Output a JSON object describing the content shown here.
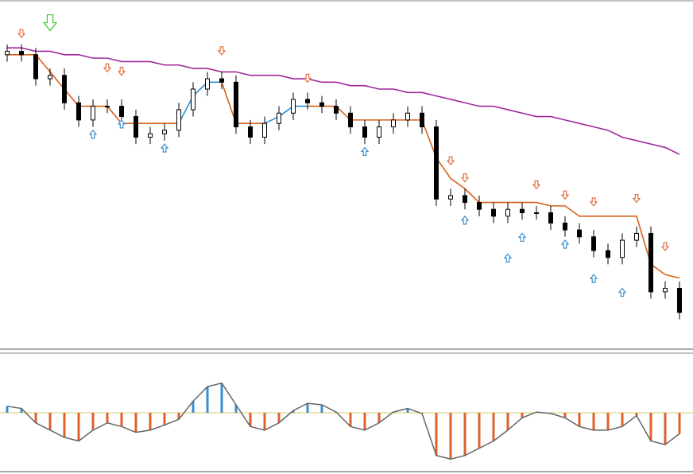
{
  "chart_data": [
    {
      "type": "candlestick",
      "ylim": [
        0,
        100
      ],
      "up_color": "#ffffff",
      "down_color": "#000000",
      "open": [
        85,
        86,
        85,
        78,
        79,
        71,
        66,
        70,
        70,
        67,
        61,
        62,
        63,
        69,
        75,
        78,
        77,
        64,
        61,
        65,
        68,
        72,
        71,
        70,
        68,
        64,
        61,
        64,
        66,
        68,
        64,
        43,
        44,
        42,
        40,
        38,
        40,
        39,
        39,
        36,
        34,
        32,
        28,
        26,
        31,
        33,
        16,
        17
      ],
      "high": [
        88,
        88,
        87,
        81,
        81,
        73,
        72,
        72,
        72,
        69,
        64,
        65,
        71,
        77,
        80,
        80,
        79,
        66,
        67,
        70,
        74,
        74,
        73,
        72,
        70,
        66,
        66,
        68,
        70,
        70,
        66,
        46,
        46,
        44,
        42,
        42,
        42,
        41,
        41,
        38,
        36,
        34,
        30,
        33,
        35,
        35,
        19,
        19
      ],
      "low": [
        83,
        83,
        76,
        76,
        69,
        64,
        64,
        68,
        65,
        59,
        59,
        60,
        61,
        67,
        73,
        75,
        62,
        59,
        59,
        63,
        66,
        69,
        68,
        66,
        62,
        59,
        59,
        62,
        64,
        62,
        41,
        41,
        40,
        38,
        36,
        36,
        37,
        37,
        34,
        32,
        30,
        26,
        24,
        24,
        29,
        14,
        14,
        8
      ],
      "close": [
        86,
        85,
        78,
        79,
        71,
        66,
        70,
        70,
        67,
        61,
        62,
        63,
        69,
        75,
        78,
        77,
        64,
        61,
        65,
        68,
        72,
        71,
        70,
        68,
        64,
        61,
        64,
        66,
        68,
        64,
        43,
        44,
        42,
        40,
        38,
        40,
        39,
        39,
        36,
        34,
        32,
        28,
        26,
        31,
        33,
        16,
        17,
        10
      ],
      "series": [
        {
          "color": "#a0289a",
          "values": [
            87,
            87,
            86,
            86,
            85,
            85,
            84,
            84,
            83,
            83,
            83,
            82,
            82,
            81,
            81,
            80,
            80,
            79,
            79,
            79,
            78,
            78,
            77,
            77,
            76,
            76,
            75,
            75,
            74,
            74,
            73,
            72,
            71,
            70,
            70,
            69,
            68,
            67,
            67,
            66,
            65,
            64,
            63,
            61,
            60,
            59,
            58,
            56
          ]
        },
        {
          "color": "#d9601a",
          "values": [
            85,
            85,
            85,
            80,
            75,
            70,
            70,
            70,
            65,
            65,
            65,
            65,
            65,
            null,
            null,
            77,
            65,
            65,
            65,
            null,
            null,
            70,
            70,
            70,
            66,
            66,
            66,
            66,
            66,
            66,
            55,
            49,
            46,
            42,
            42,
            42,
            42,
            42,
            41,
            41,
            38,
            38,
            38,
            38,
            38,
            24,
            21,
            20
          ]
        },
        {
          "color": "#2b8fd0",
          "values": [
            null,
            null,
            null,
            null,
            null,
            null,
            null,
            null,
            null,
            null,
            null,
            null,
            65,
            73,
            77,
            77,
            null,
            null,
            65,
            67,
            70,
            70,
            null,
            null,
            null,
            null,
            null,
            null,
            null,
            null,
            null,
            null,
            null,
            null,
            null,
            null,
            null,
            null,
            null,
            null,
            null,
            null,
            null,
            null,
            null,
            null,
            null,
            null
          ]
        }
      ],
      "markers": [
        {
          "direction": "down",
          "color": "#e07040",
          "values": [
            null,
            90,
            null,
            null,
            null,
            null,
            null,
            80,
            79,
            null,
            null,
            null,
            null,
            null,
            null,
            85,
            null,
            null,
            null,
            null,
            null,
            77,
            null,
            null,
            null,
            null,
            null,
            null,
            null,
            null,
            null,
            53,
            48,
            null,
            null,
            null,
            null,
            46,
            null,
            43,
            null,
            41,
            null,
            null,
            42,
            null,
            28,
            null
          ]
        },
        {
          "direction": "up",
          "color": "#3a8fd0",
          "values": [
            null,
            null,
            null,
            null,
            null,
            null,
            63,
            null,
            66,
            null,
            null,
            59,
            null,
            null,
            null,
            null,
            null,
            null,
            null,
            null,
            null,
            null,
            null,
            null,
            null,
            58,
            null,
            null,
            null,
            null,
            null,
            null,
            38,
            null,
            null,
            27,
            33,
            null,
            null,
            31,
            null,
            21,
            null,
            17,
            null,
            null,
            null,
            null
          ]
        },
        {
          "direction": "down",
          "color": "#36c72e",
          "size": "large",
          "values": [
            null,
            null,
            null,
            92,
            null,
            null,
            null,
            null,
            null,
            null,
            null,
            null,
            null,
            null,
            null,
            null,
            null,
            null,
            null,
            null,
            null,
            null,
            null,
            null,
            null,
            null,
            null,
            null,
            null,
            null,
            null,
            null,
            null,
            null,
            null,
            null,
            null,
            null,
            null,
            null,
            null,
            null,
            null,
            null,
            null,
            null,
            null,
            null
          ]
        }
      ]
    },
    {
      "type": "bar",
      "ylim": [
        -78,
        78
      ],
      "pos_color": "#3a8fd0",
      "neg_color": "#e0602a",
      "outline_color": "#666666",
      "values": [
        9,
        6,
        -14,
        -24,
        -34,
        -39,
        -24,
        -14,
        -19,
        -27,
        -24,
        -17,
        -9,
        16,
        36,
        41,
        11,
        -19,
        -24,
        -14,
        3,
        13,
        11,
        1,
        -19,
        -24,
        -14,
        1,
        6,
        -1,
        -59,
        -64,
        -59,
        -49,
        -39,
        -24,
        -7,
        1,
        -1,
        -7,
        -19,
        -24,
        -24,
        -19,
        -4,
        -39,
        -44,
        -29
      ]
    }
  ]
}
